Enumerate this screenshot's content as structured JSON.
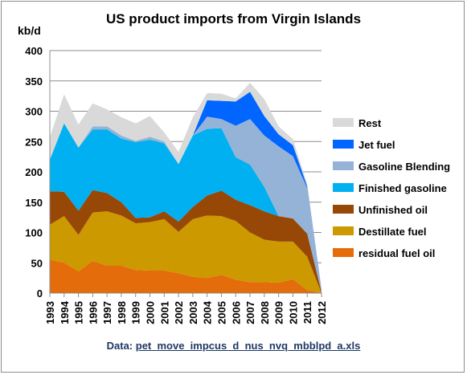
{
  "chart_data": {
    "type": "area",
    "stacked": true,
    "title": "US product imports from Virgin Islands",
    "ylabel": "kb/d",
    "xlabel": "",
    "ylim": [
      0,
      400
    ],
    "yticks": [
      0,
      50,
      100,
      150,
      200,
      250,
      300,
      350,
      400
    ],
    "grid": true,
    "legend_position": "right",
    "x": [
      "1993",
      "1994",
      "1995",
      "1996",
      "1997",
      "1998",
      "1999",
      "2000",
      "2001",
      "2002",
      "2003",
      "2004",
      "2005",
      "2006",
      "2007",
      "2008",
      "2009",
      "2010",
      "2011",
      "2012"
    ],
    "series": [
      {
        "name": "residual fuel oil",
        "color": "#e46c0a",
        "values": [
          55,
          50,
          36,
          53,
          45,
          45,
          38,
          37,
          37,
          33,
          27,
          25,
          30,
          22,
          18,
          18,
          17,
          23,
          5,
          0
        ]
      },
      {
        "name": "Destillate fuel",
        "color": "#cc9900",
        "values": [
          58,
          77,
          60,
          80,
          90,
          83,
          77,
          80,
          85,
          68,
          95,
          103,
          97,
          97,
          82,
          70,
          68,
          62,
          55,
          0
        ]
      },
      {
        "name": "Unfinished oil",
        "color": "#974806",
        "values": [
          55,
          40,
          40,
          37,
          30,
          22,
          9,
          8,
          13,
          17,
          20,
          33,
          42,
          35,
          45,
          47,
          42,
          38,
          38,
          2
        ]
      },
      {
        "name": "Finished gasoline",
        "color": "#00b0f0",
        "values": [
          52,
          113,
          104,
          100,
          105,
          105,
          125,
          128,
          112,
          95,
          118,
          110,
          103,
          70,
          67,
          40,
          0,
          0,
          0,
          0
        ]
      },
      {
        "name": "Gasoline Blending",
        "color": "#95b3d7",
        "values": [
          0,
          0,
          0,
          5,
          5,
          5,
          2,
          5,
          3,
          0,
          0,
          20,
          15,
          52,
          75,
          85,
          115,
          103,
          75,
          5
        ]
      },
      {
        "name": "Jet fuel",
        "color": "#0066ff",
        "values": [
          0,
          0,
          0,
          0,
          0,
          0,
          0,
          0,
          0,
          0,
          0,
          27,
          30,
          40,
          45,
          32,
          20,
          18,
          3,
          0
        ]
      },
      {
        "name": "Rest",
        "color": "#d9d9d9",
        "values": [
          37,
          48,
          38,
          38,
          28,
          30,
          29,
          34,
          15,
          20,
          30,
          12,
          12,
          5,
          15,
          28,
          13,
          10,
          4,
          0
        ]
      }
    ],
    "legend_order": [
      "Rest",
      "Jet fuel",
      "Gasoline Blending",
      "Finished gasoline",
      "Unfinished oil",
      "Destillate fuel",
      "residual fuel oil"
    ]
  },
  "source": {
    "prefix": "Data: ",
    "link_text": "pet_move_impcus_d_nus_nvq_mbblpd_a.xls"
  },
  "colors": {
    "grid": "#8c8c8c",
    "source_text": "#1f3864"
  }
}
